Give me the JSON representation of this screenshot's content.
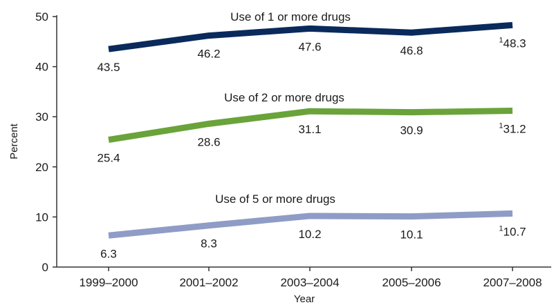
{
  "chart_data": {
    "type": "line",
    "categories": [
      "1999–2000",
      "2001–2002",
      "2003–2004",
      "2005–2006",
      "2007–2008"
    ],
    "series": [
      {
        "name": "Use of 1 or more drugs",
        "values": [
          43.5,
          46.2,
          47.6,
          46.8,
          48.3
        ],
        "color": "#0a2a5c",
        "labels": [
          "43.5",
          "46.2",
          "47.6",
          "46.8",
          "48.3"
        ],
        "notes": [
          "",
          "",
          "",
          "",
          "1"
        ]
      },
      {
        "name": "Use of 2 or more drugs",
        "values": [
          25.4,
          28.6,
          31.1,
          30.9,
          31.2
        ],
        "color": "#6aa33a",
        "labels": [
          "25.4",
          "28.6",
          "31.1",
          "30.9",
          "31.2"
        ],
        "notes": [
          "",
          "",
          "",
          "",
          "1"
        ]
      },
      {
        "name": "Use of 5 or more drugs",
        "values": [
          6.3,
          8.3,
          10.2,
          10.1,
          10.7
        ],
        "color": "#8f9cc6",
        "labels": [
          "6.3",
          "8.3",
          "10.2",
          "10.1",
          "10.7"
        ],
        "notes": [
          "",
          "",
          "",
          "",
          "1"
        ]
      }
    ],
    "xlabel": "Year",
    "ylabel": "Percent",
    "ylim": [
      0,
      50
    ],
    "yticks": [
      "0",
      "10",
      "20",
      "30",
      "40",
      "50"
    ],
    "grid": false,
    "legend": "inline labels above each line"
  }
}
